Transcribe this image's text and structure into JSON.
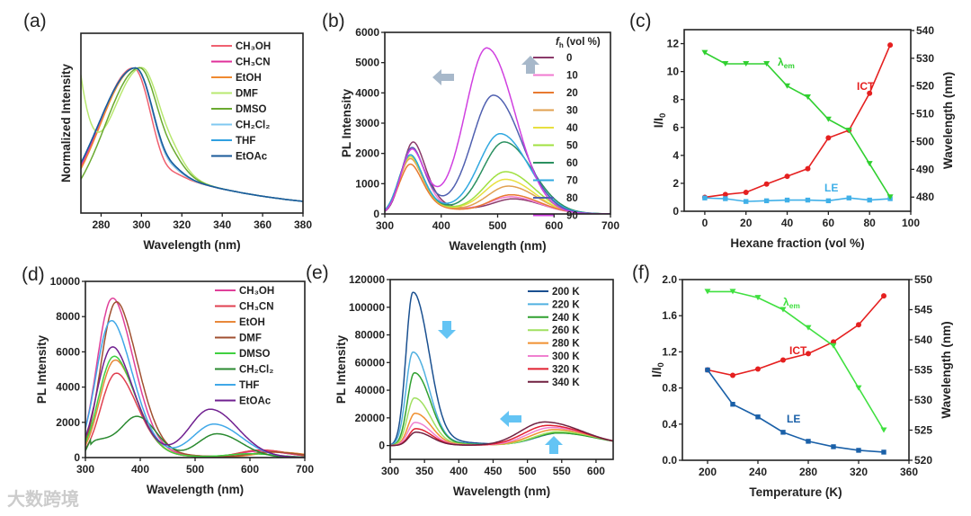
{
  "watermark": "大数跨境",
  "chart_data": [
    {
      "id": "a",
      "panel_label": "(a)",
      "type": "line",
      "xlabel": "Wavelength (nm)",
      "ylabel": "Normalized Intensity",
      "xlim": [
        270,
        380
      ],
      "ylim": [
        0,
        1.24
      ],
      "xticks": [
        280,
        300,
        320,
        340,
        360,
        380
      ],
      "yticks": [],
      "series": [
        {
          "name": "CH₃OH",
          "color": "#f06070",
          "peaks": [
            {
              "c": 296,
              "a": 1,
              "sl": 17,
              "sr": 9.6
            }
          ]
        },
        {
          "name": "CH₃CN",
          "color": "#e0309a",
          "peaks": [
            {
              "c": 297,
              "a": 1,
              "sl": 18,
              "sr": 9.8
            }
          ]
        },
        {
          "name": "EtOH",
          "color": "#f08a30",
          "peaks": [
            {
              "c": 297,
              "a": 1,
              "sl": 17.5,
              "sr": 9.8
            }
          ]
        },
        {
          "name": "DMF",
          "color": "#b8e870",
          "peaks": [
            {
              "c": 300,
              "a": 1,
              "sl": 16,
              "sr": 10.5
            },
            {
              "c": 255,
              "a": 2.4,
              "sl": 10,
              "sr": 10
            }
          ]
        },
        {
          "name": "DMSO",
          "color": "#6aaa30",
          "peaks": [
            {
              "c": 299,
              "a": 1,
              "sl": 17,
              "sr": 10.4
            }
          ]
        },
        {
          "name": "CH₂Cl₂",
          "color": "#80c8f0",
          "peaks": [
            {
              "c": 297,
              "a": 1,
              "sl": 18.5,
              "sr": 9.8
            }
          ]
        },
        {
          "name": "THF",
          "color": "#30a0e0",
          "peaks": [
            {
              "c": 297,
              "a": 1,
              "sl": 18.5,
              "sr": 10
            }
          ]
        },
        {
          "name": "EtOAc",
          "color": "#1a5a9a",
          "peaks": [
            {
              "c": 297,
              "a": 1,
              "sl": 18.5,
              "sr": 10
            }
          ]
        }
      ]
    },
    {
      "id": "b",
      "panel_label": "(b)",
      "type": "line",
      "xlabel": "Wavelength (nm)",
      "ylabel": "PL Intensity",
      "xlim": [
        300,
        700
      ],
      "ylim": [
        0,
        6000
      ],
      "xticks": [
        300,
        400,
        500,
        600,
        700
      ],
      "yticks": [
        0,
        1000,
        2000,
        3000,
        4000,
        5000,
        6000
      ],
      "legend_title": {
        "main": "f",
        "sub": "h",
        "rest": " (vol %)"
      },
      "series": [
        {
          "name": "0",
          "color": "#8a3a6a",
          "LE": [
            345,
            1950
          ],
          "ICT": [
            530,
            450
          ]
        },
        {
          "name": "10",
          "color": "#f07ad0",
          "LE": [
            343,
            1800
          ],
          "ICT": [
            525,
            520
          ]
        },
        {
          "name": "20",
          "color": "#e87a30",
          "LE": [
            340,
            1350
          ],
          "ICT": [
            525,
            600
          ]
        },
        {
          "name": "30",
          "color": "#e0a050",
          "LE": [
            340,
            1500
          ],
          "ICT": [
            520,
            880
          ]
        },
        {
          "name": "40",
          "color": "#e8e040",
          "LE": [
            340,
            1550
          ],
          "ICT": [
            515,
            1100
          ]
        },
        {
          "name": "50",
          "color": "#a0e040",
          "LE": [
            340,
            1600
          ],
          "ICT": [
            515,
            1350
          ]
        },
        {
          "name": "60",
          "color": "#2a9060",
          "LE": [
            340,
            1600
          ],
          "ICT": [
            512,
            2330
          ]
        },
        {
          "name": "70",
          "color": "#30a8e0",
          "LE": [
            340,
            1600
          ],
          "ICT": [
            505,
            2600
          ]
        },
        {
          "name": "80",
          "color": "#5060b0",
          "LE": [
            343,
            1800
          ],
          "ICT": [
            493,
            3850
          ]
        },
        {
          "name": "90",
          "color": "#d040e0",
          "LE": [
            343,
            1750
          ],
          "ICT": [
            481,
            5400
          ]
        }
      ]
    },
    {
      "id": "c",
      "panel_label": "(c)",
      "type": "line",
      "xlabel": "Hexane fraction (vol %)",
      "ylabel": {
        "main": "I/I",
        "sub": "0"
      },
      "ylabel_right": "Wavelength (nm)",
      "xlim": [
        -10,
        100
      ],
      "ylim": [
        0,
        13
      ],
      "ylim_right": [
        474.9,
        540.3
      ],
      "xticks": [
        0,
        20,
        40,
        60,
        80,
        100
      ],
      "yticks": [
        0,
        2,
        4,
        6,
        8,
        10,
        12
      ],
      "yticks_right": [
        480,
        490,
        500,
        510,
        520,
        530,
        540
      ],
      "x": [
        0,
        10,
        20,
        30,
        40,
        50,
        60,
        70,
        80,
        90
      ],
      "series": [
        {
          "name": "ICT",
          "label": "ICT",
          "axis": "left",
          "color": "#e52020",
          "marker": "circle",
          "values": [
            1,
            1.2,
            1.35,
            1.95,
            2.5,
            3.05,
            5.25,
            5.8,
            8.45,
            11.9
          ]
        },
        {
          "name": "LE",
          "label": "LE",
          "axis": "left",
          "color": "#40b0e8",
          "marker": "square",
          "values": [
            0.95,
            0.9,
            0.7,
            0.75,
            0.8,
            0.8,
            0.75,
            0.95,
            0.8,
            0.9
          ]
        },
        {
          "name": "λem",
          "label": {
            "main": "λ",
            "sub": "em"
          },
          "axis": "right",
          "color": "#30d030",
          "marker": "tri-down",
          "values": [
            532,
            528,
            528,
            528,
            520,
            516,
            508,
            504,
            492,
            480
          ]
        }
      ]
    },
    {
      "id": "d",
      "panel_label": "(d)",
      "type": "line",
      "xlabel": "Wavelength (nm)",
      "ylabel": "PL Intensity",
      "xlim": [
        300,
        700
      ],
      "ylim": [
        0,
        10000
      ],
      "xticks": [
        300,
        400,
        500,
        600,
        700
      ],
      "yticks": [
        0,
        2000,
        4000,
        6000,
        8000,
        10000
      ],
      "series": [
        {
          "name": "CH₃OH",
          "color": "#e0409a",
          "LE": [
            345,
            8500
          ],
          "ICT": [
            620,
            350
          ]
        },
        {
          "name": "CH₃CN",
          "color": "#e04050",
          "LE": [
            352,
            4500
          ],
          "ICT": [
            620,
            420
          ]
        },
        {
          "name": "EtOH",
          "color": "#e8883a",
          "LE": [
            350,
            5200
          ],
          "ICT": [
            650,
            300
          ]
        },
        {
          "name": "DMF",
          "color": "#a05030",
          "LE": [
            352,
            8300
          ],
          "ICT": [
            640,
            300
          ]
        },
        {
          "name": "DMSO",
          "color": "#40d040",
          "LE": [
            348,
            5400
          ],
          "ICT": [
            600,
            200
          ]
        },
        {
          "name": "CH₂Cl₂",
          "color": "#2a8a30",
          "LE": [
            395,
            2300
          ],
          "ICT": [
            540,
            1350
          ]
        },
        {
          "name": "THF",
          "color": "#40a8e8",
          "LE": [
            343,
            7300
          ],
          "ICT": [
            535,
            1850
          ]
        },
        {
          "name": "EtOAc",
          "color": "#702090",
          "LE": [
            345,
            5900
          ],
          "ICT": [
            528,
            2700
          ]
        }
      ]
    },
    {
      "id": "e",
      "panel_label": "(e)",
      "type": "line",
      "xlabel": "Wavelength (nm)",
      "ylabel": "PL Intensity",
      "xlim": [
        300,
        625
      ],
      "ylim": [
        -10000,
        120000
      ],
      "xticks": [
        300,
        350,
        400,
        450,
        500,
        550,
        600
      ],
      "yticks": [
        0,
        20000,
        40000,
        60000,
        80000,
        100000,
        120000
      ],
      "series": [
        {
          "name": "200 K",
          "color": "#1a5090",
          "LE": [
            333,
            110000
          ],
          "ICT": [
            548,
            9000
          ]
        },
        {
          "name": "220 K",
          "color": "#50b0e0",
          "LE": [
            333,
            67000
          ],
          "ICT": [
            548,
            9500
          ]
        },
        {
          "name": "240 K",
          "color": "#30a030",
          "LE": [
            335,
            52000
          ],
          "ICT": [
            545,
            9000
          ]
        },
        {
          "name": "260 K",
          "color": "#a0e060",
          "LE": [
            335,
            34000
          ],
          "ICT": [
            545,
            10000
          ]
        },
        {
          "name": "280 K",
          "color": "#f09030",
          "LE": [
            336,
            23000
          ],
          "ICT": [
            540,
            11500
          ]
        },
        {
          "name": "300 K",
          "color": "#f080d0",
          "LE": [
            336,
            16500
          ],
          "ICT": [
            535,
            13000
          ]
        },
        {
          "name": "320 K",
          "color": "#e02030",
          "LE": [
            337,
            12000
          ],
          "ICT": [
            530,
            14500
          ]
        },
        {
          "name": "340 K",
          "color": "#702040",
          "LE": [
            337,
            9500
          ],
          "ICT": [
            525,
            17000
          ]
        }
      ]
    },
    {
      "id": "f",
      "panel_label": "(f)",
      "type": "line",
      "xlabel": "Temperature (K)",
      "ylabel": {
        "main": "I/I",
        "sub": "0"
      },
      "ylabel_right": "Wavelength (nm)",
      "xlim": [
        180,
        360
      ],
      "ylim": [
        0,
        2.0
      ],
      "ylim_right": [
        520,
        550
      ],
      "xticks": [
        200,
        240,
        280,
        320,
        360
      ],
      "yticks": [
        0.0,
        0.4,
        0.8,
        1.2,
        1.6,
        2.0
      ],
      "yticks_right": [
        520,
        525,
        530,
        535,
        540,
        545,
        550
      ],
      "x": [
        200,
        220,
        240,
        260,
        280,
        300,
        320,
        340
      ],
      "series": [
        {
          "name": "ICT",
          "label": "ICT",
          "axis": "left",
          "color": "#e52020",
          "marker": "circle",
          "values": [
            1.0,
            0.94,
            1.01,
            1.11,
            1.18,
            1.31,
            1.5,
            1.82
          ]
        },
        {
          "name": "LE",
          "label": "LE",
          "axis": "left",
          "color": "#1a60a8",
          "marker": "square",
          "values": [
            1.0,
            0.62,
            0.48,
            0.31,
            0.21,
            0.15,
            0.11,
            0.09
          ]
        },
        {
          "name": "λem",
          "label": {
            "main": "λ",
            "sub": "em"
          },
          "axis": "right",
          "color": "#40e040",
          "marker": "tri-down",
          "values": [
            548,
            548,
            547,
            545,
            542,
            539,
            532,
            525
          ]
        }
      ]
    }
  ]
}
